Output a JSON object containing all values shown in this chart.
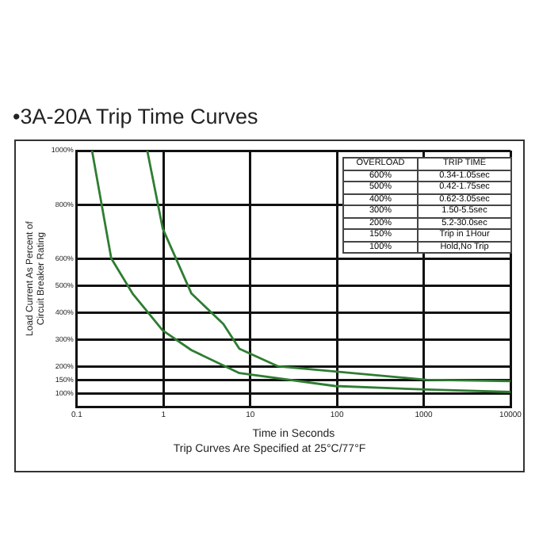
{
  "chart_data": {
    "type": "line",
    "title": "•3A-20A Trip Time Curves",
    "xlabel": "Time in Seconds",
    "ylabel": [
      "Load Current As Percent of",
      "Circuit Breaker Rating"
    ],
    "annotations": [
      "Trip Curves Are Specified at 25°C/77°F",
      "OVERLOAD",
      "TRIP TIME",
      "600%",
      "0.34-1.05sec",
      "500%",
      "0.42-1.75sec",
      "400%",
      "0.62-3.05sec",
      "300%",
      "1.50-5.5sec",
      "200%",
      "5.2-30.0sec",
      "150%",
      "Trip in 1Hour",
      "100%",
      "Hold,No Trip"
    ],
    "log": "x",
    "grid": true,
    "legend": false,
    "marker": "none",
    "line_style": "solid",
    "xlim": [
      0.1,
      10000
    ],
    "xticks": [
      0.1,
      1,
      10,
      100,
      1000,
      10000
    ],
    "ylim": [
      50,
      1000
    ],
    "yticks": [
      {
        "value": 100,
        "label": "100%"
      },
      {
        "value": 150,
        "label": "150%"
      },
      {
        "value": 200,
        "label": "200%"
      },
      {
        "value": 300,
        "label": "300%"
      },
      {
        "value": 400,
        "label": "400%"
      },
      {
        "value": 500,
        "label": "500%"
      },
      {
        "value": 600,
        "label": "600%"
      },
      {
        "value": 800,
        "label": "800%"
      },
      {
        "value": 1000,
        "label": "1000%"
      }
    ],
    "series": [
      {
        "color": "#2e7d32",
        "x": [
          0.15,
          0.25,
          0.44,
          0.98,
          2.1,
          7.5,
          95,
          1070,
          10000
        ],
        "values": [
          1000,
          600,
          470,
          333,
          260,
          175,
          127,
          114,
          105
        ]
      },
      {
        "color": "#2e7d32",
        "x": [
          0.65,
          0.98,
          2.1,
          4.9,
          7.5,
          21,
          1070,
          10000
        ],
        "values": [
          1000,
          711,
          470,
          357,
          265,
          200,
          150,
          145
        ]
      }
    ]
  }
}
